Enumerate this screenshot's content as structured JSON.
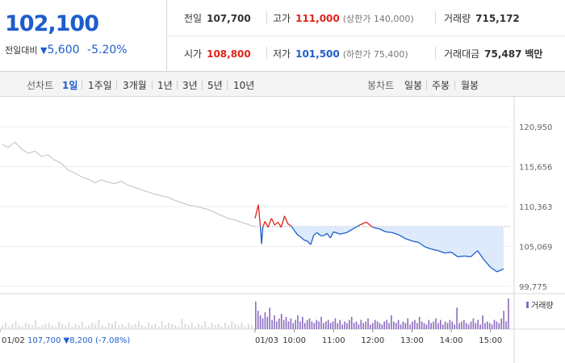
{
  "header": {
    "price": "102,100",
    "change_label": "전일대비",
    "change_arrow": "▼",
    "change_amount": "5,600",
    "change_pct": "-5.20%"
  },
  "stats": {
    "prev_label": "전일",
    "prev_value": "107,700",
    "high_label": "고가",
    "high_value": "111,000",
    "high_sub": "(상한가 140,000)",
    "volume_label": "거래량",
    "volume_value": "715,172",
    "open_label": "시가",
    "open_value": "108,800",
    "low_label": "저가",
    "low_value": "101,500",
    "low_sub": "(하한가 75,400)",
    "amount_label": "거래대금",
    "amount_value": "75,487",
    "amount_unit": "백만"
  },
  "tabs": {
    "line_label": "선차트",
    "line_items": [
      "1일",
      "1주일",
      "3개월",
      "1년",
      "3년",
      "5년",
      "10년"
    ],
    "active": "1일",
    "candle_label": "봉차트",
    "candle_items": [
      "일봉",
      "주봉",
      "월봉"
    ]
  },
  "colors": {
    "blue": "#1e5dcc",
    "red": "#e0231b",
    "grey": "#c8c8c8",
    "volume": "#8b6bbf",
    "fill": "#dceafb"
  },
  "chart_data": {
    "type": "line",
    "y_ticks": [
      "120,950",
      "115,656",
      "110,363",
      "105,069",
      "99,775"
    ],
    "ylim": [
      99775,
      120950
    ],
    "x_ticks": [
      "01/02",
      "01/03",
      "10:00",
      "11:00",
      "12:00",
      "13:00",
      "14:00",
      "15:00"
    ],
    "baseline": 107700,
    "prev_day": {
      "date": "01/02",
      "close": "107,700",
      "change_arrow": "▼",
      "change": "8,200",
      "change_pct": "(-7.08%)"
    },
    "volume_legend": "거래량",
    "prev_series": [
      [
        0,
        118600
      ],
      [
        0.5,
        118200
      ],
      [
        1,
        118900
      ],
      [
        1.5,
        118000
      ],
      [
        2,
        117400
      ],
      [
        2.5,
        117700
      ],
      [
        3,
        117000
      ],
      [
        3.5,
        117200
      ],
      [
        4,
        116500
      ],
      [
        4.5,
        116100
      ],
      [
        5,
        115200
      ],
      [
        5.5,
        114800
      ],
      [
        6,
        114300
      ],
      [
        6.5,
        114000
      ],
      [
        7,
        113500
      ],
      [
        7.5,
        113900
      ],
      [
        8,
        113600
      ],
      [
        8.5,
        113400
      ],
      [
        9,
        113700
      ],
      [
        9.5,
        113200
      ],
      [
        10,
        112900
      ],
      [
        10.5,
        112600
      ],
      [
        11,
        112300
      ],
      [
        11.5,
        112000
      ],
      [
        12,
        111800
      ],
      [
        12.5,
        111600
      ],
      [
        13,
        111200
      ],
      [
        13.5,
        110900
      ],
      [
        14,
        110600
      ],
      [
        14.5,
        110400
      ],
      [
        15,
        110200
      ],
      [
        15.5,
        110000
      ],
      [
        16,
        109600
      ],
      [
        16.5,
        109200
      ],
      [
        17,
        108800
      ],
      [
        17.5,
        108600
      ],
      [
        18,
        108300
      ],
      [
        18.5,
        108000
      ],
      [
        19,
        107700
      ]
    ],
    "day_series": [
      [
        "09:00",
        108800
      ],
      [
        "09:05",
        110600
      ],
      [
        "09:08",
        107800
      ],
      [
        "09:10",
        105400
      ],
      [
        "09:12",
        107600
      ],
      [
        "09:15",
        108400
      ],
      [
        "09:20",
        107600
      ],
      [
        "09:25",
        108800
      ],
      [
        "09:30",
        107900
      ],
      [
        "09:35",
        108300
      ],
      [
        "09:40",
        107600
      ],
      [
        "09:45",
        109100
      ],
      [
        "09:50",
        108100
      ],
      [
        "09:55",
        107800
      ],
      [
        "10:00",
        107200
      ],
      [
        "10:05",
        106600
      ],
      [
        "10:10",
        106300
      ],
      [
        "10:15",
        105900
      ],
      [
        "10:20",
        105800
      ],
      [
        "10:25",
        105300
      ],
      [
        "10:30",
        106600
      ],
      [
        "10:35",
        106900
      ],
      [
        "10:40",
        106500
      ],
      [
        "10:45",
        106500
      ],
      [
        "10:50",
        106800
      ],
      [
        "10:55",
        106200
      ],
      [
        "11:00",
        107000
      ],
      [
        "11:10",
        106700
      ],
      [
        "11:20",
        106900
      ],
      [
        "11:30",
        107400
      ],
      [
        "11:40",
        107900
      ],
      [
        "11:50",
        108300
      ],
      [
        "12:00",
        107600
      ],
      [
        "12:10",
        107400
      ],
      [
        "12:20",
        107000
      ],
      [
        "12:30",
        106900
      ],
      [
        "12:40",
        106600
      ],
      [
        "12:50",
        106100
      ],
      [
        "13:00",
        105800
      ],
      [
        "13:10",
        105600
      ],
      [
        "13:20",
        105000
      ],
      [
        "13:30",
        104700
      ],
      [
        "13:40",
        104500
      ],
      [
        "13:50",
        104200
      ],
      [
        "14:00",
        104300
      ],
      [
        "14:10",
        103700
      ],
      [
        "14:20",
        103800
      ],
      [
        "14:30",
        103700
      ],
      [
        "14:40",
        104500
      ],
      [
        "14:50",
        103300
      ],
      [
        "15:00",
        102300
      ],
      [
        "15:10",
        101700
      ],
      [
        "15:20",
        102100
      ]
    ],
    "volume_prev": [
      3,
      5,
      2,
      4,
      6,
      3,
      2,
      5,
      4,
      3,
      7,
      2,
      3,
      4,
      5,
      3,
      2,
      6,
      4,
      3,
      5,
      2,
      4,
      3,
      6,
      2,
      3,
      5,
      4,
      7,
      3,
      2,
      5,
      4,
      6,
      3,
      4,
      2,
      5,
      3,
      4,
      6,
      3,
      2,
      5,
      3,
      4,
      2,
      6,
      3,
      5,
      4,
      3,
      2,
      8,
      4,
      3,
      5,
      2,
      4,
      3,
      6,
      2,
      5,
      3,
      4,
      2,
      5,
      3,
      6,
      4,
      3,
      5,
      2,
      4,
      3
    ],
    "volume_day": [
      18,
      12,
      9,
      7,
      11,
      8,
      14,
      6,
      9,
      5,
      7,
      10,
      6,
      8,
      5,
      7,
      4,
      6,
      9,
      5,
      8,
      4,
      6,
      7,
      5,
      4,
      6,
      5,
      8,
      4,
      5,
      6,
      4,
      5,
      7,
      4,
      6,
      3,
      5,
      4,
      6,
      8,
      4,
      5,
      3,
      6,
      4,
      5,
      7,
      3,
      4,
      6,
      5,
      4,
      3,
      5,
      6,
      4,
      9,
      5,
      4,
      6,
      3,
      5,
      4,
      7,
      3,
      5,
      6,
      4,
      8,
      5,
      4,
      3,
      6,
      4,
      5,
      7,
      4,
      6,
      3,
      5,
      4,
      6,
      5,
      3,
      14,
      4,
      5,
      6,
      4,
      3,
      5,
      7,
      4,
      6,
      3,
      9,
      4,
      5,
      4,
      3,
      6,
      5,
      4,
      7,
      12,
      5,
      20
    ]
  }
}
